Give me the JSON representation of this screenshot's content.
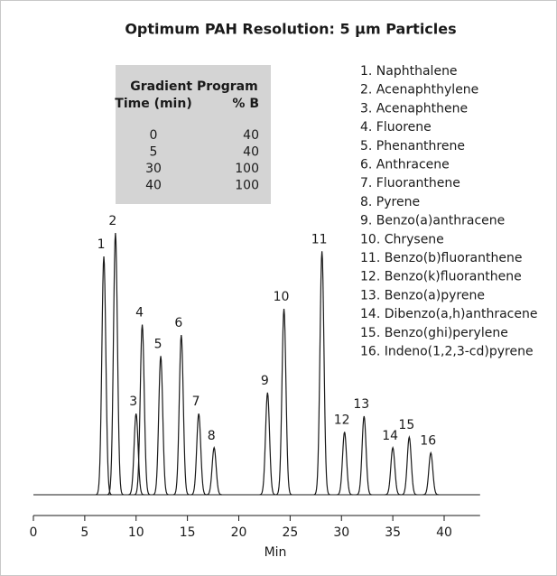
{
  "chart_data": {
    "type": "chromatogram",
    "title": "Optimum PAH Resolution: 5 µm Particles",
    "x_label": "Min",
    "xlim": [
      0,
      43.5
    ],
    "xticks": [
      0,
      5,
      10,
      15,
      20,
      25,
      30,
      35,
      40
    ],
    "color": "#1a1a1a",
    "peak_labels": [
      "1",
      "2",
      "3",
      "4",
      "5",
      "6",
      "7",
      "8",
      "9",
      "10",
      "11",
      "12",
      "13",
      "14",
      "15",
      "16"
    ],
    "x": [
      6.86,
      7.99,
      10.0,
      10.6,
      12.4,
      14.4,
      16.1,
      17.6,
      22.8,
      24.4,
      28.1,
      30.3,
      32.2,
      35.0,
      36.6,
      38.7
    ],
    "values": [
      91,
      100,
      31,
      65,
      53,
      61,
      31,
      18,
      39,
      71,
      93,
      24,
      30,
      18,
      22,
      16
    ],
    "compounds": [
      "1. Naphthalene",
      "2. Acenaphthylene",
      "3. Acenaphthene",
      "4. Fluorene",
      "5. Phenanthrene",
      "6. Anthracene",
      "7. Fluoranthene",
      "8. Pyrene",
      "9. Benzo(a)anthracene",
      "10. Chrysene",
      "11. Benzo(b)fluoranthene",
      "12. Benzo(k)fluoranthene",
      "13. Benzo(a)pyrene",
      "14. Dibenzo(a,h)anthracene",
      "15. Benzo(ghi)perylene",
      "16. Indeno(1,2,3-cd)pyrene"
    ],
    "gradient_table": {
      "title": "Gradient Program",
      "columns": [
        "Time (min)",
        "% B"
      ],
      "rows": [
        [
          "0",
          "40"
        ],
        [
          "5",
          "40"
        ],
        [
          "30",
          "100"
        ],
        [
          "40",
          "100"
        ]
      ]
    }
  }
}
